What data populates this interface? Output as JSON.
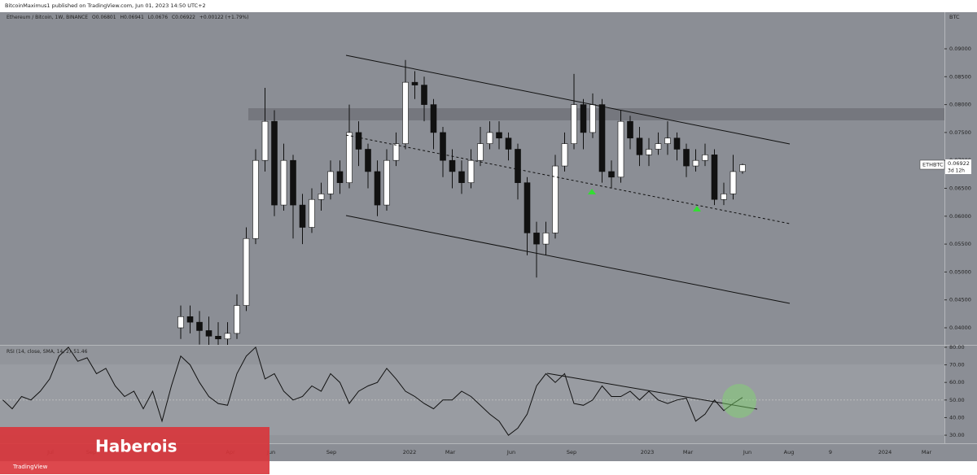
{
  "header": {
    "publisher": "BitcoinMaximus1 published on TradingView.com, Jun 01, 2023 14:50 UTC+2"
  },
  "chart_data": {
    "type": "candlestick",
    "title": "Ethereum / Bitcoin, 1W, BINANCE",
    "ohlc_labels": [
      "O",
      "H",
      "L",
      "C"
    ],
    "change": "+0.00122 (+1.79%)",
    "currency": "BTC",
    "symbol": "ETHBTC",
    "countdown": "3d 12h",
    "open": [
      0.04,
      0.042,
      0.041,
      0.0395,
      0.0385,
      0.038,
      0.039,
      0.044,
      0.056,
      0.07,
      0.077,
      0.062,
      0.07,
      0.062,
      0.058,
      0.063,
      0.064,
      0.068,
      0.066,
      0.075,
      0.072,
      0.068,
      0.062,
      0.07,
      0.073,
      0.084,
      0.0835,
      0.08,
      0.075,
      0.07,
      0.068,
      0.066,
      0.07,
      0.073,
      0.075,
      0.074,
      0.072,
      0.066,
      0.057,
      0.055,
      0.057,
      0.069,
      0.073,
      0.08,
      0.075,
      0.08,
      0.068,
      0.067,
      0.077,
      0.074,
      0.071,
      0.072,
      0.073,
      0.074,
      0.072,
      0.069,
      0.07,
      0.071,
      0.063,
      0.064,
      0.06801
    ],
    "high": [
      0.044,
      0.044,
      0.043,
      0.042,
      0.041,
      0.041,
      0.046,
      0.058,
      0.072,
      0.083,
      0.079,
      0.073,
      0.071,
      0.064,
      0.065,
      0.066,
      0.07,
      0.07,
      0.08,
      0.077,
      0.073,
      0.07,
      0.072,
      0.075,
      0.088,
      0.086,
      0.085,
      0.081,
      0.076,
      0.072,
      0.07,
      0.072,
      0.076,
      0.077,
      0.077,
      0.075,
      0.073,
      0.067,
      0.059,
      0.059,
      0.071,
      0.075,
      0.0855,
      0.081,
      0.082,
      0.081,
      0.07,
      0.079,
      0.078,
      0.076,
      0.074,
      0.075,
      0.077,
      0.075,
      0.073,
      0.072,
      0.073,
      0.072,
      0.066,
      0.071,
      0.06941
    ],
    "low": [
      0.038,
      0.039,
      0.037,
      0.036,
      0.036,
      0.036,
      0.038,
      0.043,
      0.055,
      0.068,
      0.06,
      0.061,
      0.056,
      0.055,
      0.057,
      0.061,
      0.063,
      0.064,
      0.065,
      0.069,
      0.065,
      0.06,
      0.061,
      0.069,
      0.072,
      0.081,
      0.077,
      0.072,
      0.067,
      0.065,
      0.064,
      0.065,
      0.069,
      0.072,
      0.072,
      0.07,
      0.063,
      0.053,
      0.049,
      0.053,
      0.056,
      0.068,
      0.072,
      0.072,
      0.074,
      0.066,
      0.065,
      0.066,
      0.072,
      0.069,
      0.069,
      0.071,
      0.071,
      0.07,
      0.067,
      0.068,
      0.069,
      0.062,
      0.062,
      0.063,
      0.0676
    ],
    "close": [
      0.042,
      0.041,
      0.0395,
      0.0385,
      0.038,
      0.039,
      0.044,
      0.056,
      0.07,
      0.077,
      0.062,
      0.07,
      0.062,
      0.058,
      0.063,
      0.064,
      0.068,
      0.066,
      0.075,
      0.072,
      0.068,
      0.062,
      0.07,
      0.073,
      0.084,
      0.0835,
      0.08,
      0.075,
      0.07,
      0.068,
      0.066,
      0.07,
      0.073,
      0.075,
      0.074,
      0.072,
      0.066,
      0.057,
      0.055,
      0.057,
      0.069,
      0.073,
      0.08,
      0.075,
      0.08,
      0.068,
      0.067,
      0.077,
      0.074,
      0.071,
      0.072,
      0.073,
      0.074,
      0.072,
      0.069,
      0.07,
      0.071,
      0.063,
      0.064,
      0.068,
      0.06922
    ],
    "ylim": [
      0.03694,
      0.09656
    ],
    "yticks": [
      {
        "value": 0.04,
        "label": "0.04000"
      },
      {
        "value": 0.045,
        "label": "0.04500"
      },
      {
        "value": 0.05,
        "label": "0.05000"
      },
      {
        "value": 0.055,
        "label": "0.05500"
      },
      {
        "value": 0.06,
        "label": "0.06000"
      },
      {
        "value": 0.065,
        "label": "0.06500"
      },
      {
        "value": 0.07,
        "label": "0.07000"
      },
      {
        "value": 0.075,
        "label": "0.07500"
      },
      {
        "value": 0.08,
        "label": "0.08000"
      },
      {
        "value": 0.085,
        "label": "0.08500"
      },
      {
        "value": 0.09,
        "label": "0.09000"
      }
    ],
    "x_labels": [
      "Jul",
      "Sep",
      "Apr",
      "Jun",
      "Sep",
      "2022",
      "Mar",
      "Jun",
      "Sep",
      "2023",
      "Mar",
      "Jun",
      "Aug",
      "9",
      "2024",
      "Mar"
    ],
    "rsi": {
      "name": "RSI (14, close, SMA, 14, 2)",
      "value_label": "51.46",
      "color": "#111111",
      "values": [
        50,
        45,
        52,
        50,
        55,
        62,
        75,
        80,
        72,
        74,
        65,
        68,
        58,
        52,
        55,
        45,
        55,
        38,
        58,
        75,
        70,
        60,
        52,
        48,
        47,
        65,
        75,
        80,
        62,
        65,
        55,
        50,
        52,
        58,
        55,
        65,
        60,
        48,
        55,
        58,
        60,
        68,
        62,
        55,
        52,
        48,
        45,
        50,
        50,
        55,
        52,
        47,
        42,
        38,
        30,
        34,
        42,
        58,
        65,
        60,
        65,
        48,
        47,
        50,
        58,
        52,
        52,
        55,
        50,
        55,
        50,
        48,
        50,
        51,
        38,
        42,
        50,
        44,
        48,
        51.46
      ],
      "ylim": [
        25.4,
        80.9
      ],
      "yticks": [
        {
          "value": 30,
          "label": "30.00"
        },
        {
          "value": 40,
          "label": "40.00"
        },
        {
          "value": 50,
          "label": "50.00"
        },
        {
          "value": 60,
          "label": "60.00"
        },
        {
          "value": 70,
          "label": "70.00"
        },
        {
          "value": 80,
          "label": "80.00"
        }
      ]
    }
  },
  "watermark": "Haberois",
  "footer": "TradingView"
}
